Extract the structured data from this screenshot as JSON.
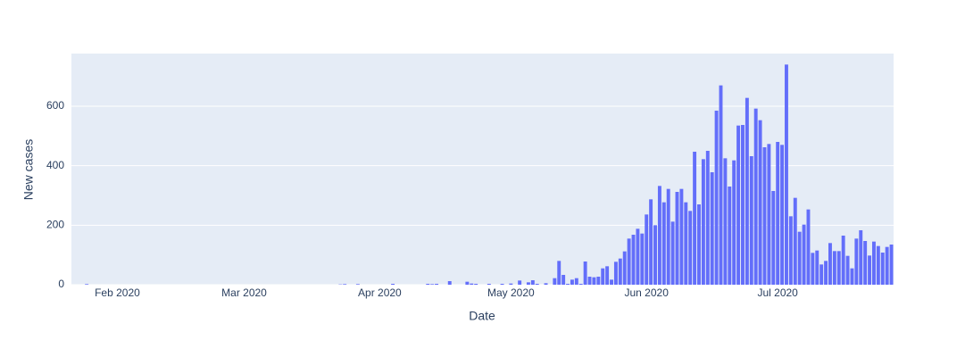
{
  "chart_data": {
    "type": "bar",
    "xlabel": "Date",
    "ylabel": "New cases",
    "color": "#636efa",
    "grid": true,
    "x": [
      "2020-01-22",
      "2020-01-23",
      "2020-01-24",
      "2020-01-25",
      "2020-01-26",
      "2020-01-27",
      "2020-01-28",
      "2020-01-29",
      "2020-01-30",
      "2020-01-31",
      "2020-02-01",
      "2020-02-02",
      "2020-02-03",
      "2020-02-04",
      "2020-02-05",
      "2020-02-06",
      "2020-02-07",
      "2020-02-08",
      "2020-02-09",
      "2020-02-10",
      "2020-02-11",
      "2020-02-12",
      "2020-02-13",
      "2020-02-14",
      "2020-02-15",
      "2020-02-16",
      "2020-02-17",
      "2020-02-18",
      "2020-02-19",
      "2020-02-20",
      "2020-02-21",
      "2020-02-22",
      "2020-02-23",
      "2020-02-24",
      "2020-02-25",
      "2020-02-26",
      "2020-02-27",
      "2020-02-28",
      "2020-02-29",
      "2020-03-01",
      "2020-03-02",
      "2020-03-03",
      "2020-03-04",
      "2020-03-05",
      "2020-03-06",
      "2020-03-07",
      "2020-03-08",
      "2020-03-09",
      "2020-03-10",
      "2020-03-11",
      "2020-03-12",
      "2020-03-13",
      "2020-03-14",
      "2020-03-15",
      "2020-03-16",
      "2020-03-17",
      "2020-03-18",
      "2020-03-19",
      "2020-03-20",
      "2020-03-21",
      "2020-03-22",
      "2020-03-23",
      "2020-03-24",
      "2020-03-25",
      "2020-03-26",
      "2020-03-27",
      "2020-03-28",
      "2020-03-29",
      "2020-03-30",
      "2020-03-31",
      "2020-04-01",
      "2020-04-02",
      "2020-04-03",
      "2020-04-04",
      "2020-04-05",
      "2020-04-06",
      "2020-04-07",
      "2020-04-08",
      "2020-04-09",
      "2020-04-10",
      "2020-04-11",
      "2020-04-12",
      "2020-04-13",
      "2020-04-14",
      "2020-04-15",
      "2020-04-16",
      "2020-04-17",
      "2020-04-18",
      "2020-04-19",
      "2020-04-20",
      "2020-04-21",
      "2020-04-22",
      "2020-04-23",
      "2020-04-24",
      "2020-04-25",
      "2020-04-26",
      "2020-04-27",
      "2020-04-28",
      "2020-04-29",
      "2020-04-30",
      "2020-05-01",
      "2020-05-02",
      "2020-05-03",
      "2020-05-04",
      "2020-05-05",
      "2020-05-06",
      "2020-05-07",
      "2020-05-08",
      "2020-05-09",
      "2020-05-10",
      "2020-05-11",
      "2020-05-12",
      "2020-05-13",
      "2020-05-14",
      "2020-05-15",
      "2020-05-16",
      "2020-05-17",
      "2020-05-18",
      "2020-05-19",
      "2020-05-20",
      "2020-05-21",
      "2020-05-22",
      "2020-05-23",
      "2020-05-24",
      "2020-05-25",
      "2020-05-26",
      "2020-05-27",
      "2020-05-28",
      "2020-05-29",
      "2020-05-30",
      "2020-05-31",
      "2020-06-01",
      "2020-06-02",
      "2020-06-03",
      "2020-06-04",
      "2020-06-05",
      "2020-06-06",
      "2020-06-07",
      "2020-06-08",
      "2020-06-09",
      "2020-06-10",
      "2020-06-11",
      "2020-06-12",
      "2020-06-13",
      "2020-06-14",
      "2020-06-15",
      "2020-06-16",
      "2020-06-17",
      "2020-06-18",
      "2020-06-19",
      "2020-06-20",
      "2020-06-21",
      "2020-06-22",
      "2020-06-23",
      "2020-06-24",
      "2020-06-25",
      "2020-06-26",
      "2020-06-27",
      "2020-06-28",
      "2020-06-29",
      "2020-06-30",
      "2020-07-01",
      "2020-07-02",
      "2020-07-03",
      "2020-07-04",
      "2020-07-05",
      "2020-07-06",
      "2020-07-07",
      "2020-07-08",
      "2020-07-09",
      "2020-07-10",
      "2020-07-11",
      "2020-07-12",
      "2020-07-13",
      "2020-07-14",
      "2020-07-15",
      "2020-07-16",
      "2020-07-17",
      "2020-07-18",
      "2020-07-19",
      "2020-07-20",
      "2020-07-21",
      "2020-07-22",
      "2020-07-23",
      "2020-07-24",
      "2020-07-25",
      "2020-07-26",
      "2020-07-27"
    ],
    "values": [
      0,
      0,
      0,
      2,
      0,
      0,
      0,
      0,
      0,
      0,
      0,
      0,
      0,
      0,
      0,
      0,
      0,
      0,
      0,
      0,
      0,
      0,
      0,
      0,
      0,
      0,
      0,
      0,
      0,
      0,
      0,
      0,
      0,
      0,
      0,
      0,
      0,
      0,
      0,
      0,
      0,
      0,
      0,
      0,
      0,
      0,
      0,
      0,
      0,
      0,
      0,
      0,
      0,
      0,
      0,
      0,
      0,
      0,
      0,
      0,
      0,
      1,
      2,
      0,
      0,
      2,
      0,
      0,
      0,
      0,
      0,
      0,
      0,
      3,
      0,
      0,
      0,
      0,
      0,
      0,
      0,
      3,
      2,
      3,
      0,
      0,
      12,
      0,
      0,
      0,
      10,
      4,
      3,
      0,
      0,
      3,
      0,
      0,
      3,
      0,
      4,
      0,
      14,
      0,
      8,
      15,
      3,
      0,
      5,
      0,
      22,
      80,
      33,
      3,
      17,
      22,
      3,
      78,
      27,
      25,
      27,
      55,
      62,
      17,
      77,
      88,
      112,
      155,
      168,
      188,
      172,
      236,
      287,
      200,
      332,
      277,
      322,
      212,
      312,
      322,
      277,
      248,
      447,
      270,
      422,
      450,
      378,
      585,
      670,
      425,
      330,
      418,
      535,
      537,
      628,
      432,
      592,
      553,
      462,
      473,
      315,
      480,
      470,
      740,
      230,
      292,
      178,
      202,
      253,
      107,
      115,
      68,
      80,
      140,
      113,
      113,
      165,
      97,
      55,
      155,
      183,
      147,
      98,
      145,
      130,
      108,
      127,
      135
    ],
    "xlim": [
      "2020-01-21T12:00:00Z",
      "2020-07-27T12:00:00Z"
    ],
    "xticks": [
      {
        "value": "2020-02-01",
        "label": "Feb 2020"
      },
      {
        "value": "2020-03-01",
        "label": "Mar 2020"
      },
      {
        "value": "2020-04-01",
        "label": "Apr 2020"
      },
      {
        "value": "2020-05-01",
        "label": "May 2020"
      },
      {
        "value": "2020-06-01",
        "label": "Jun 2020"
      },
      {
        "value": "2020-07-01",
        "label": "Jul 2020"
      }
    ],
    "ylim": [
      0,
      777
    ],
    "yticks": [
      0,
      200,
      400,
      600
    ]
  }
}
